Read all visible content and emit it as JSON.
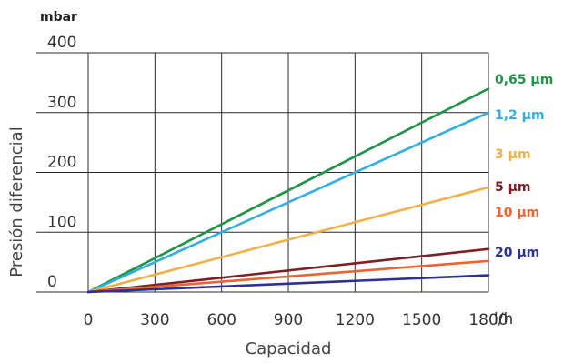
{
  "chart_data": {
    "type": "line",
    "title": "",
    "xlabel": "Capacidad",
    "ylabel": "Presión diferencial",
    "x_unit": "l/h",
    "y_unit": "mbar",
    "xlim": [
      0,
      1800
    ],
    "ylim": [
      0,
      400
    ],
    "x_ticks": [
      "0",
      "300",
      "600",
      "900",
      "1200",
      "1500",
      "1800"
    ],
    "y_ticks": [
      "0",
      "100",
      "200",
      "300",
      "400"
    ],
    "grid": true,
    "series": [
      {
        "name": "0,65 µm",
        "color": "#1f9447",
        "x": [
          0,
          1800
        ],
        "y": [
          0,
          340
        ]
      },
      {
        "name": "1,2 µm",
        "color": "#31aee2",
        "x": [
          0,
          1800
        ],
        "y": [
          0,
          300
        ]
      },
      {
        "name": "3 µm",
        "color": "#f4b046",
        "x": [
          0,
          1800
        ],
        "y": [
          0,
          175
        ]
      },
      {
        "name": "5 µm",
        "color": "#7d1f24",
        "x": [
          0,
          1800
        ],
        "y": [
          0,
          72
        ]
      },
      {
        "name": "10 µm",
        "color": "#ec6432",
        "x": [
          0,
          1800
        ],
        "y": [
          0,
          52
        ]
      },
      {
        "name": "20 µm",
        "color": "#2e3191",
        "x": [
          0,
          1800
        ],
        "y": [
          0,
          28
        ]
      }
    ]
  }
}
